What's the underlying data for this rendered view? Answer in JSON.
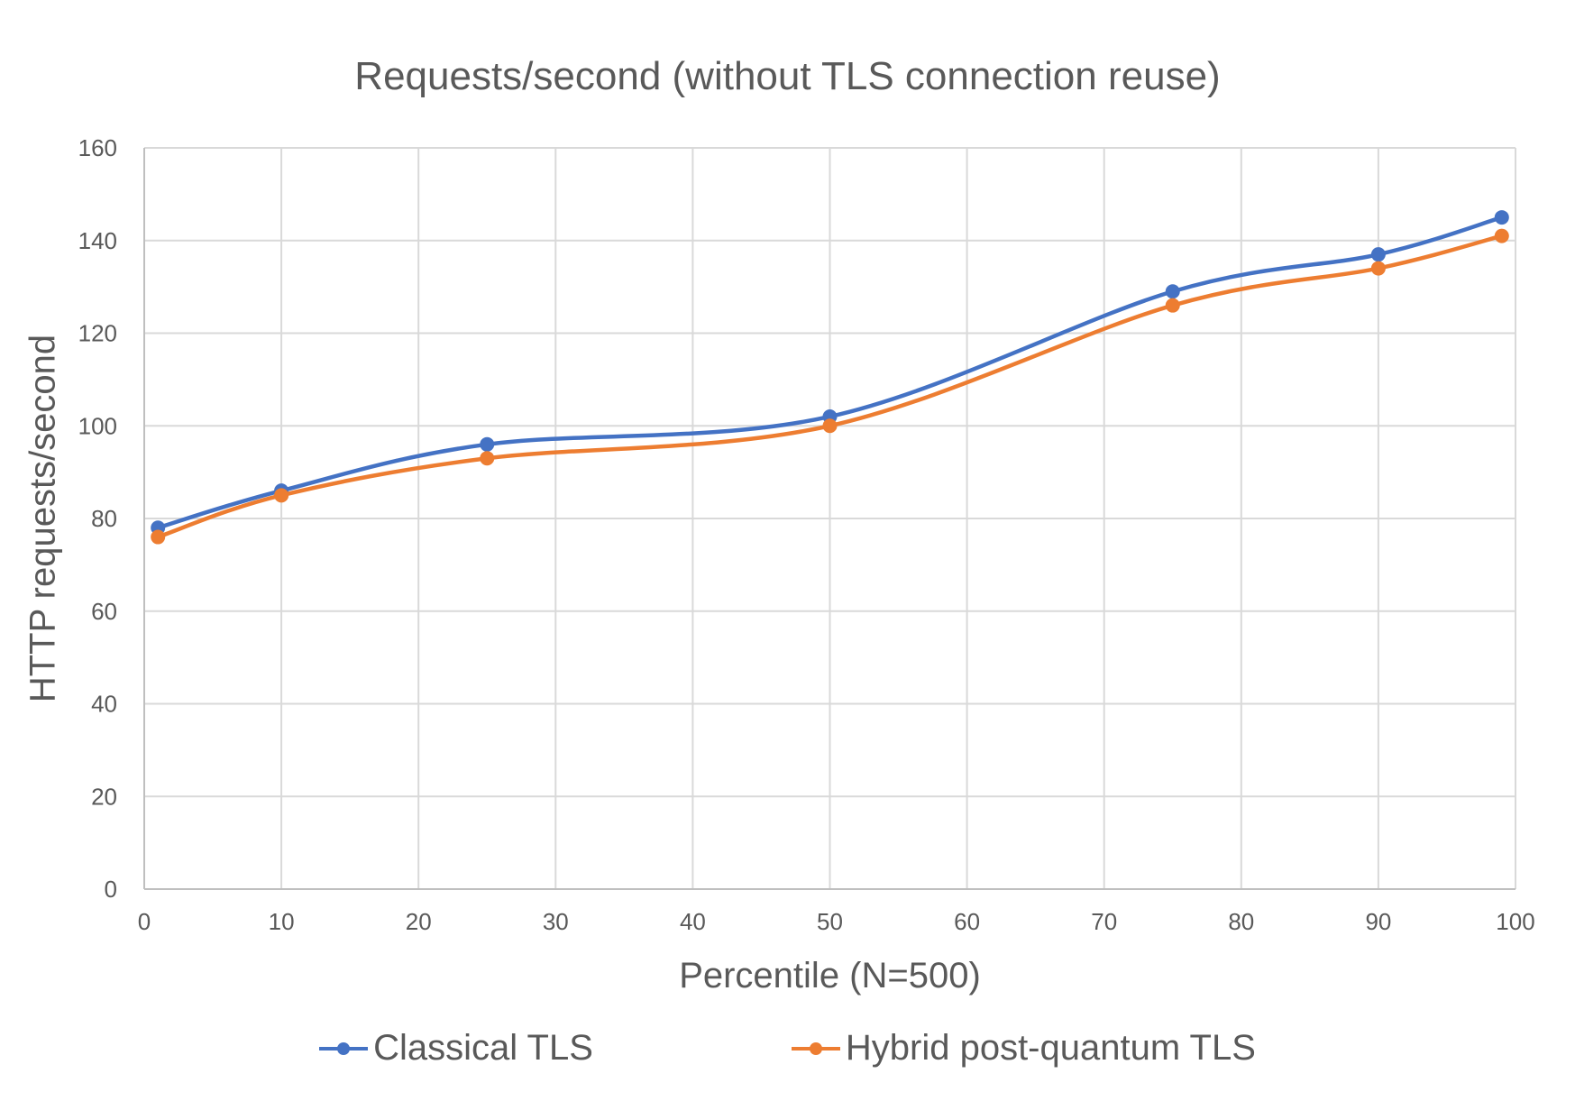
{
  "chart_data": {
    "type": "line",
    "title": "Requests/second (without TLS connection reuse)",
    "xlabel": "Percentile (N=500)",
    "ylabel": "HTTP requests/second",
    "x": [
      1,
      10,
      25,
      50,
      75,
      90,
      99
    ],
    "series": [
      {
        "name": "Classical TLS",
        "color": "#4472C4",
        "values": [
          78,
          86,
          96,
          102,
          129,
          137,
          145
        ]
      },
      {
        "name": "Hybrid post-quantum TLS",
        "color": "#ED7D31",
        "values": [
          76,
          85,
          93,
          100,
          126,
          134,
          141
        ]
      }
    ],
    "xlim": [
      0,
      100
    ],
    "ylim": [
      0,
      160
    ],
    "xticks": [
      0,
      10,
      20,
      30,
      40,
      50,
      60,
      70,
      80,
      90,
      100
    ],
    "yticks": [
      0,
      20,
      40,
      60,
      80,
      100,
      120,
      140,
      160
    ],
    "grid": true,
    "smooth": true,
    "legend_position": "bottom"
  }
}
